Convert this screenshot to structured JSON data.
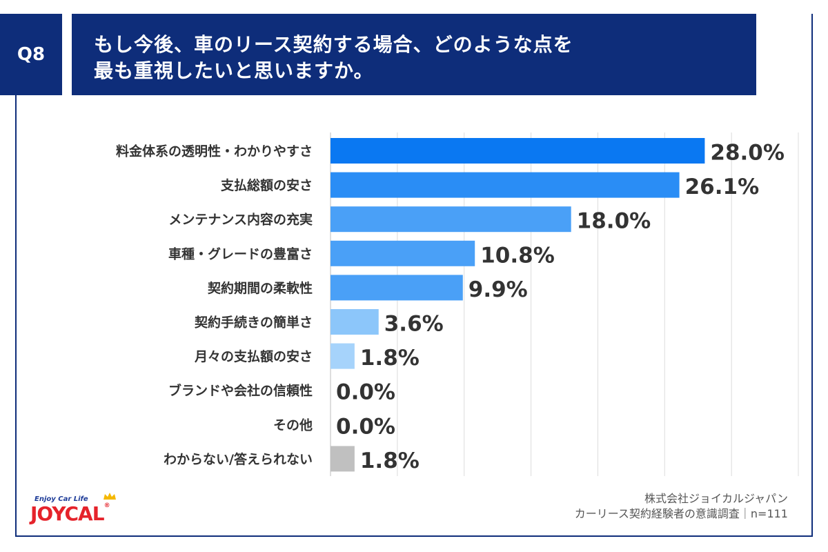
{
  "question": {
    "badge": "Q8",
    "line1": "もし今後、車のリース契約する場合、どのような点を",
    "line2": "最も重視したいと思いますか。"
  },
  "chart_data": {
    "type": "bar",
    "orientation": "horizontal",
    "categories": [
      "料金体系の透明性・わかりやすさ",
      "支払総額の安さ",
      "メンテナンス内容の充実",
      "車種・グレードの豊富さ",
      "契約期間の柔軟性",
      "契約手続きの簡単さ",
      "月々の支払額の安さ",
      "ブランドや会社の信頼性",
      "その他",
      "わからない/答えられない"
    ],
    "values": [
      28.0,
      26.1,
      18.0,
      10.8,
      9.9,
      3.6,
      1.8,
      0.0,
      0.0,
      1.8
    ],
    "value_labels": [
      "28.0%",
      "26.1%",
      "18.0%",
      "10.8%",
      "9.9%",
      "3.6%",
      "1.8%",
      "0.0%",
      "0.0%",
      "1.8%"
    ],
    "bar_colors": [
      "#0a78f2",
      "#2a8df5",
      "#4aa0f7",
      "#4aa0f7",
      "#4aa0f7",
      "#8cc6fa",
      "#a6d3fb",
      "#a6d3fb",
      "#a6d3fb",
      "#c0c0c0"
    ],
    "xlim": [
      0,
      35
    ],
    "grid": true,
    "grid_step": 5,
    "title": "",
    "xlabel": "",
    "ylabel": ""
  },
  "logo": {
    "tagline": "Enjoy Car Life",
    "name": "JOYCAL",
    "reg": "®"
  },
  "source": {
    "company": "株式会社ジョイカルジャパン",
    "survey": "カーリース契約経験者の意識調査｜n=111"
  }
}
